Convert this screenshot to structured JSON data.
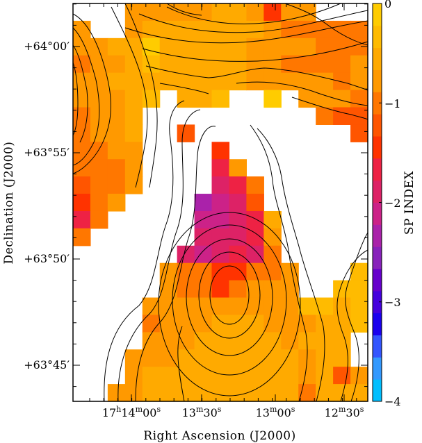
{
  "chart_data": {
    "type": "heatmap",
    "title": "",
    "xlabel": "Right Ascension (J2000)",
    "ylabel": "Declination (J2000)",
    "colorbar_label": "SP INDEX",
    "colorbar_range": [
      -4,
      0
    ],
    "colorbar_ticks": [
      "0",
      "−1",
      "−2",
      "−3",
      "−4"
    ],
    "colorbar_tick_values": [
      0,
      -1,
      -2,
      -3,
      -4
    ],
    "colorbar_colors": [
      "#00bfff",
      "#3399ff",
      "#3355ff",
      "#1a00ee",
      "#4400dd",
      "#6600cc",
      "#8822bb",
      "#aa22aa",
      "#cc2288",
      "#dd2266",
      "#ee2244",
      "#ff3300",
      "#ff5500",
      "#ff7700",
      "#ff9900",
      "#ffaa00",
      "#ffbb00",
      "#ffcc00"
    ],
    "x_ticks": [
      {
        "label_pre": "17",
        "sup1": "h",
        "mid": "14",
        "sup2": "m",
        "tail": "00",
        "sup3": "s"
      },
      {
        "label_pre": "",
        "sup1": "",
        "mid": "13",
        "sup2": "m",
        "tail": "30",
        "sup3": "s"
      },
      {
        "label_pre": "",
        "sup1": "",
        "mid": "13",
        "sup2": "m",
        "tail": "00",
        "sup3": "s"
      },
      {
        "label_pre": "",
        "sup1": "",
        "mid": "12",
        "sup2": "m",
        "tail": "30",
        "sup3": "s"
      }
    ],
    "y_ticks": [
      "+64°00′",
      "+63°55′",
      "+63°50′",
      "+63°45′"
    ],
    "grid": false,
    "values_note_grid_cols": 17,
    "values_note_grid_rows": 23,
    "values": [
      [
        null,
        null,
        null,
        -0.7,
        -0.7,
        -0.7,
        -0.7,
        -0.7,
        -0.6,
        -0.6,
        -0.7,
        -1.5,
        -0.8,
        -0.8,
        null,
        null,
        null
      ],
      [
        -0.8,
        null,
        null,
        -0.7,
        -0.6,
        -0.6,
        -0.6,
        -0.6,
        -0.6,
        -0.6,
        -0.6,
        -0.8,
        -1.0,
        -1.0,
        -0.9,
        -0.9,
        -0.9
      ],
      [
        -0.8,
        -0.7,
        -0.6,
        -0.5,
        -0.2,
        -0.6,
        -0.6,
        -0.6,
        -0.6,
        -0.6,
        -0.7,
        -0.8,
        -0.8,
        -0.8,
        -0.9,
        -0.9,
        -0.9
      ],
      [
        -0.9,
        -0.8,
        -0.7,
        -0.6,
        -0.4,
        -0.6,
        -0.6,
        -0.6,
        -0.6,
        -0.6,
        -0.7,
        -0.8,
        -0.9,
        -0.9,
        -0.9,
        -0.9,
        -0.8
      ],
      [
        -0.8,
        -0.8,
        -0.6,
        -0.6,
        -0.6,
        -0.5,
        -0.6,
        -0.6,
        -0.5,
        -0.6,
        -0.7,
        -0.7,
        -0.7,
        -0.7,
        -0.8,
        -0.9,
        -0.8
      ],
      [
        -0.8,
        -0.8,
        -0.7,
        -0.6,
        -0.4,
        null,
        -0.6,
        -0.6,
        -0.4,
        null,
        null,
        -0.2,
        null,
        -0.7,
        -0.8,
        -0.8,
        -0.9
      ],
      [
        -0.9,
        -0.8,
        -0.7,
        -0.6,
        null,
        null,
        null,
        null,
        null,
        null,
        null,
        null,
        null,
        null,
        -0.9,
        -1.2,
        -1.2
      ],
      [
        -0.9,
        -0.8,
        -0.7,
        -0.6,
        null,
        null,
        -1.3,
        null,
        null,
        null,
        null,
        null,
        null,
        null,
        null,
        null,
        -1.3
      ],
      [
        -1.0,
        -0.9,
        -0.8,
        -0.7,
        null,
        null,
        null,
        null,
        -1.4,
        null,
        null,
        null,
        null,
        null,
        null,
        null,
        null
      ],
      [
        -1.1,
        -1.0,
        -0.9,
        -0.7,
        null,
        null,
        null,
        null,
        -1.7,
        -0.8,
        null,
        null,
        null,
        null,
        null,
        null,
        null
      ],
      [
        -1.3,
        -1.1,
        -1.0,
        -0.8,
        null,
        null,
        null,
        null,
        -2.0,
        -1.7,
        -1.0,
        null,
        null,
        null,
        null,
        null,
        null
      ],
      [
        -1.5,
        -1.0,
        -0.8,
        null,
        null,
        null,
        null,
        -2.3,
        -2.1,
        -1.8,
        -1.3,
        null,
        null,
        null,
        null,
        null,
        null
      ],
      [
        -1.6,
        -1.0,
        null,
        null,
        null,
        null,
        null,
        -2.2,
        -2.1,
        -1.9,
        -1.7,
        -0.6,
        null,
        null,
        null,
        null,
        null
      ],
      [
        -1.0,
        null,
        null,
        null,
        null,
        null,
        null,
        -2.0,
        -2.0,
        -1.9,
        -1.6,
        -0.8,
        null,
        null,
        null,
        null,
        null
      ],
      [
        null,
        null,
        null,
        null,
        null,
        null,
        -1.9,
        -2.1,
        -1.9,
        -1.7,
        -1.9,
        -0.9,
        null,
        null,
        null,
        null,
        null
      ],
      [
        null,
        null,
        null,
        null,
        null,
        -0.8,
        -1.0,
        -1.1,
        -1.5,
        -1.4,
        -0.9,
        -0.9,
        -0.7,
        null,
        null,
        null,
        -0.4
      ],
      [
        null,
        null,
        null,
        null,
        null,
        -0.8,
        -1.0,
        -1.1,
        -1.4,
        -1.1,
        -0.8,
        -0.8,
        -0.7,
        null,
        null,
        -0.4,
        -0.4
      ],
      [
        null,
        null,
        null,
        null,
        -0.8,
        -0.8,
        -0.8,
        -0.8,
        -0.7,
        -0.7,
        -0.7,
        -0.7,
        -0.7,
        -0.4,
        -0.3,
        -0.5,
        -0.4
      ],
      [
        null,
        null,
        null,
        null,
        -0.9,
        -0.8,
        -0.7,
        -0.7,
        -0.6,
        -0.6,
        -0.6,
        -0.7,
        -0.7,
        -0.7,
        -0.6,
        -0.5,
        -0.4
      ],
      [
        null,
        null,
        null,
        null,
        -0.7,
        -0.7,
        -0.7,
        -0.6,
        -0.6,
        -0.6,
        -0.6,
        -0.6,
        -0.7,
        -0.6,
        -0.6,
        -0.6,
        null
      ],
      [
        null,
        null,
        null,
        -0.8,
        -0.7,
        -0.7,
        -0.6,
        -0.6,
        -0.6,
        -0.6,
        -0.6,
        -0.6,
        -0.6,
        -0.7,
        -0.6,
        -0.6,
        null
      ],
      [
        null,
        null,
        null,
        -0.8,
        -0.6,
        -0.6,
        -0.6,
        -0.6,
        -0.6,
        -0.6,
        -0.6,
        -0.6,
        -0.6,
        -0.8,
        -0.6,
        -1.2,
        -0.8
      ],
      [
        null,
        null,
        -0.7,
        -0.7,
        -0.6,
        -0.6,
        -0.6,
        -0.6,
        -0.6,
        -0.6,
        -0.6,
        -0.6,
        -0.6,
        -0.9,
        -0.6,
        -0.6,
        -0.6
      ]
    ]
  }
}
